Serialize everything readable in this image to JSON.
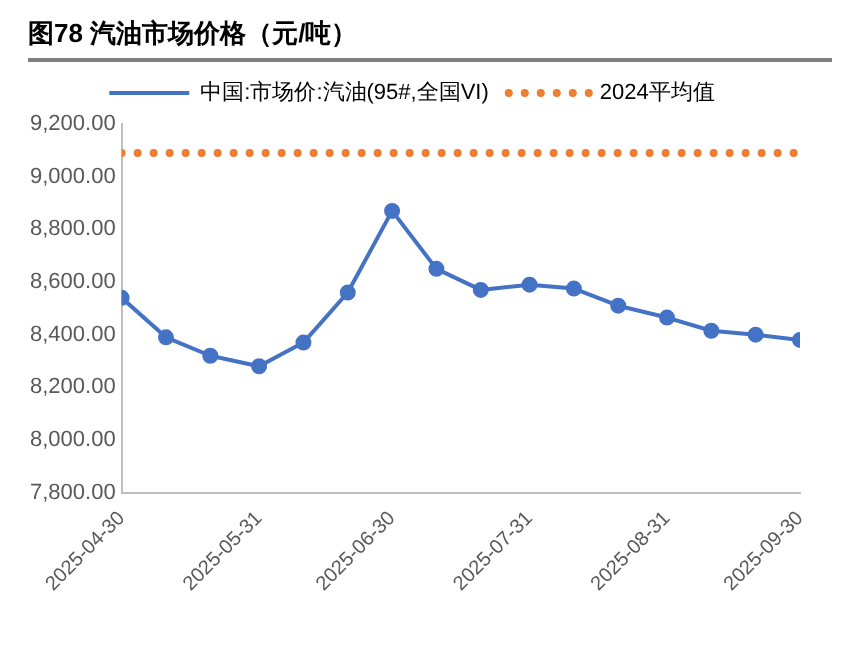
{
  "chart_data": {
    "type": "line",
    "title": "图78 汽油市场价格（元/吨）",
    "x": [
      "2025-04-30",
      "2025-05-10",
      "2025-05-20",
      "2025-05-31",
      "2025-06-10",
      "2025-06-20",
      "2025-06-30",
      "2025-07-10",
      "2025-07-20",
      "2025-07-31",
      "2025-08-10",
      "2025-08-20",
      "2025-08-31",
      "2025-09-10",
      "2025-09-20",
      "2025-09-30"
    ],
    "series": [
      {
        "name": "中国:市场价:汽油(95#,全国VI)",
        "color": "#4472c4",
        "marker": "circle",
        "line_style": "solid",
        "values": [
          8540,
          8390,
          8320,
          8280,
          8370,
          8560,
          8870,
          8650,
          8570,
          8590,
          8575,
          8510,
          8465,
          8415,
          8400,
          8380
        ]
      },
      {
        "name": "2024平均值",
        "color": "#ed7d31",
        "marker": "none",
        "line_style": "dotted",
        "values": [
          9090,
          9090,
          9090,
          9090,
          9090,
          9090,
          9090,
          9090,
          9090,
          9090,
          9090,
          9090,
          9090,
          9090,
          9090,
          9090
        ]
      }
    ],
    "xlim": [
      "2025-04-30",
      "2025-09-30"
    ],
    "xticks": [
      "2025-04-30",
      "2025-05-31",
      "2025-06-30",
      "2025-07-31",
      "2025-08-31",
      "2025-09-30"
    ],
    "ylim": [
      7800,
      9200
    ],
    "yticks": [
      {
        "value": 7800,
        "label": "7,800.00"
      },
      {
        "value": 8000,
        "label": "8,000.00"
      },
      {
        "value": 8200,
        "label": "8,200.00"
      },
      {
        "value": 8400,
        "label": "8,400.00"
      },
      {
        "value": 8600,
        "label": "8,600.00"
      },
      {
        "value": 8800,
        "label": "8,800.00"
      },
      {
        "value": 9000,
        "label": "9,000.00"
      },
      {
        "value": 9200,
        "label": "9,200.00"
      }
    ],
    "grid": false,
    "legend": "top"
  }
}
